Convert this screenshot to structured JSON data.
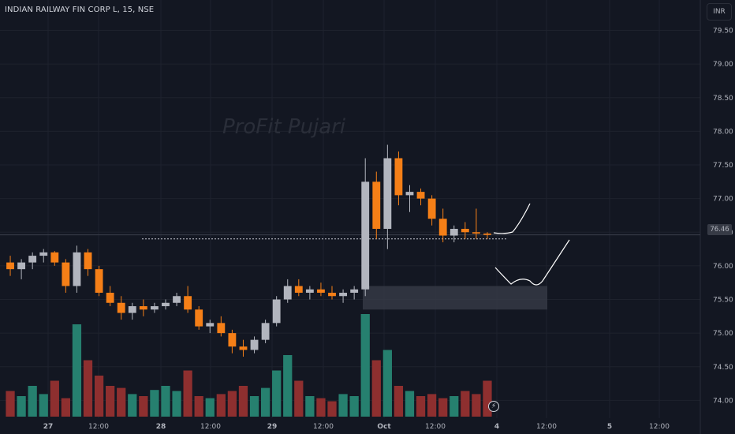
{
  "header": {
    "symbol_title": "INDIAN RAILWAY FIN CORP L, 15, NSE",
    "currency_button": "INR",
    "watermark": "ProFit Pujari"
  },
  "last_price_label": "76.46",
  "colors": {
    "background": "#131722",
    "up_candle": "#b2b5be",
    "down_candle": "#f57f17",
    "volume_up": "#26806f",
    "volume_down": "#8e2f2f",
    "dotted_support": "#c9ccd4",
    "zone_fill": "#3a3e4a"
  },
  "icons": {
    "replay": "lightning-icon"
  },
  "chart_data": {
    "type": "candlestick",
    "title": "INDIAN RAILWAY FIN CORP L, 15, NSE",
    "ylim": [
      73.75,
      79.6
    ],
    "y_ticks": [
      "79.50",
      "79.00",
      "78.50",
      "78.00",
      "77.50",
      "77.00",
      "76.50",
      "76.00",
      "75.50",
      "75.00",
      "74.50",
      "74.00"
    ],
    "x_ticks": [
      "27",
      "12:00",
      "28",
      "12:00",
      "29",
      "12:00",
      "Oct",
      "12:00",
      "4",
      "12:00",
      "5",
      "12:00"
    ],
    "x_tick_bar_index": [
      5,
      16,
      17,
      28,
      29,
      40,
      41,
      52,
      53,
      64,
      65,
      76
    ],
    "grid": true,
    "candles": [
      [
        76.05,
        76.15,
        75.85,
        75.95
      ],
      [
        75.95,
        76.1,
        75.8,
        76.05
      ],
      [
        76.05,
        76.2,
        75.95,
        76.15
      ],
      [
        76.15,
        76.25,
        76.05,
        76.2
      ],
      [
        76.2,
        76.22,
        76.0,
        76.05
      ],
      [
        76.05,
        76.1,
        75.6,
        75.7
      ],
      [
        75.7,
        76.3,
        75.6,
        76.2
      ],
      [
        76.2,
        76.25,
        75.85,
        75.95
      ],
      [
        75.95,
        76.0,
        75.55,
        75.6
      ],
      [
        75.6,
        75.7,
        75.4,
        75.45
      ],
      [
        75.45,
        75.55,
        75.2,
        75.3
      ],
      [
        75.3,
        75.45,
        75.2,
        75.4
      ],
      [
        75.4,
        75.5,
        75.25,
        75.35
      ],
      [
        75.35,
        75.45,
        75.3,
        75.4
      ],
      [
        75.4,
        75.5,
        75.35,
        75.45
      ],
      [
        75.45,
        75.6,
        75.4,
        75.55
      ],
      [
        75.55,
        75.7,
        75.3,
        75.35
      ],
      [
        75.35,
        75.4,
        75.05,
        75.1
      ],
      [
        75.1,
        75.2,
        75.0,
        75.15
      ],
      [
        75.15,
        75.25,
        74.95,
        75.0
      ],
      [
        75.0,
        75.05,
        74.7,
        74.8
      ],
      [
        74.8,
        74.9,
        74.65,
        74.75
      ],
      [
        74.75,
        74.95,
        74.7,
        74.9
      ],
      [
        74.9,
        75.2,
        74.85,
        75.15
      ],
      [
        75.15,
        75.55,
        75.1,
        75.5
      ],
      [
        75.5,
        75.8,
        75.45,
        75.7
      ],
      [
        75.7,
        75.8,
        75.55,
        75.6
      ],
      [
        75.6,
        75.7,
        75.5,
        75.65
      ],
      [
        75.65,
        75.75,
        75.55,
        75.6
      ],
      [
        75.6,
        75.7,
        75.5,
        75.55
      ],
      [
        75.55,
        75.65,
        75.45,
        75.6
      ],
      [
        75.6,
        75.7,
        75.5,
        75.65
      ],
      [
        75.65,
        77.6,
        75.55,
        77.25
      ],
      [
        77.25,
        77.4,
        76.4,
        76.55
      ],
      [
        76.55,
        77.8,
        76.25,
        77.6
      ],
      [
        77.6,
        77.7,
        76.9,
        77.05
      ],
      [
        77.05,
        77.2,
        76.8,
        77.1
      ],
      [
        77.1,
        77.15,
        76.9,
        77.0
      ],
      [
        77.0,
        77.05,
        76.6,
        76.7
      ],
      [
        76.7,
        76.85,
        76.35,
        76.45
      ],
      [
        76.45,
        76.6,
        76.35,
        76.55
      ],
      [
        76.55,
        76.65,
        76.4,
        76.5
      ],
      [
        76.5,
        76.85,
        76.4,
        76.48
      ],
      [
        76.48,
        76.5,
        76.4,
        76.46
      ]
    ],
    "volume_relative": [
      0.25,
      0.2,
      0.3,
      0.22,
      0.35,
      0.18,
      0.9,
      0.55,
      0.4,
      0.3,
      0.28,
      0.22,
      0.2,
      0.26,
      0.3,
      0.25,
      0.45,
      0.2,
      0.18,
      0.22,
      0.25,
      0.3,
      0.2,
      0.28,
      0.45,
      0.6,
      0.35,
      0.2,
      0.18,
      0.15,
      0.22,
      0.2,
      1.0,
      0.55,
      0.65,
      0.3,
      0.25,
      0.2,
      0.22,
      0.18,
      0.2,
      0.25,
      0.22,
      0.35
    ],
    "support_level": 76.4,
    "demand_zone": [
      75.35,
      75.7
    ],
    "current_price": 76.46
  }
}
